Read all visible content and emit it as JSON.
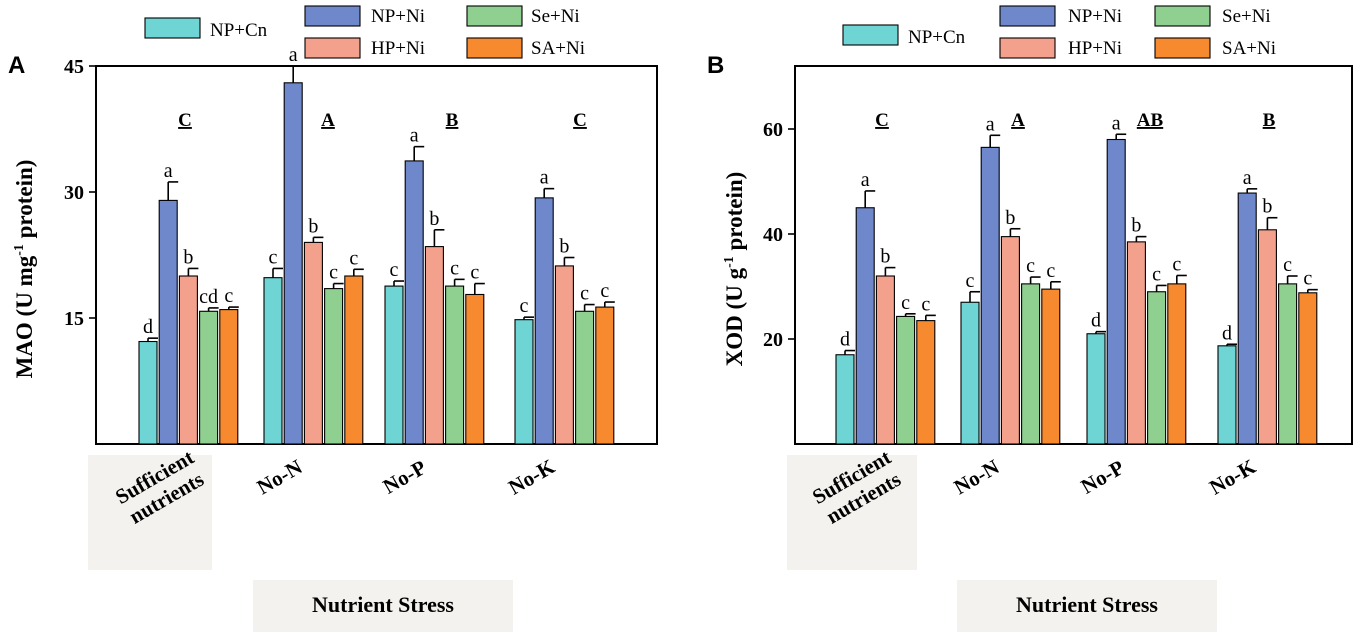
{
  "chart_data": [
    {
      "panel": "A",
      "type": "bar",
      "ylabel": "MAO (U mg",
      "ylabel_sup": "-1",
      "ylabel_tail": " protein)",
      "xlabel": "Nutrient Stress",
      "ylim": [
        0,
        45
      ],
      "yticks": [
        15,
        30,
        45
      ],
      "categories": [
        [
          "Sufficient",
          "nutrients"
        ],
        [
          "No-N"
        ],
        [
          "No-P"
        ],
        [
          "No-K"
        ]
      ],
      "group_letters": [
        "C",
        "A",
        "B",
        "C"
      ],
      "series": [
        {
          "name": "NP+Cn",
          "color": "#6fd4d4",
          "values": [
            12.2,
            19.8,
            18.8,
            14.8
          ],
          "errors": [
            0.4,
            1.1,
            0.6,
            0.3
          ],
          "letters": [
            "d",
            "c",
            "c",
            "c"
          ]
        },
        {
          "name": "NP+Ni",
          "color": "#6f88cc",
          "values": [
            29.0,
            43.0,
            33.7,
            29.3
          ],
          "errors": [
            2.2,
            2.0,
            1.7,
            1.1
          ],
          "letters": [
            "a",
            "a",
            "a",
            "a"
          ]
        },
        {
          "name": "HP+Ni",
          "color": "#f3a18c",
          "values": [
            20.0,
            24.0,
            23.5,
            21.2
          ],
          "errors": [
            0.9,
            0.6,
            2.0,
            1.0
          ],
          "letters": [
            "b",
            "b",
            "b",
            "b"
          ]
        },
        {
          "name": "Se+Ni",
          "color": "#8fcf8f",
          "values": [
            15.8,
            18.5,
            18.8,
            15.8
          ],
          "errors": [
            0.4,
            0.6,
            0.8,
            0.8
          ],
          "letters": [
            "cd",
            "c",
            "c",
            "c"
          ]
        },
        {
          "name": "SA+Ni",
          "color": "#f78a2e",
          "values": [
            16.0,
            20.0,
            17.8,
            16.3
          ],
          "errors": [
            0.3,
            0.8,
            1.3,
            0.6
          ],
          "letters": [
            "c",
            "c",
            "c",
            "c"
          ]
        }
      ]
    },
    {
      "panel": "B",
      "type": "bar",
      "ylabel": "XOD (U g",
      "ylabel_sup": "-1",
      "ylabel_tail": " protein)",
      "xlabel": "Nutrient Stress",
      "ylim": [
        0,
        72
      ],
      "yticks": [
        20,
        40,
        60
      ],
      "categories": [
        [
          "Sufficient",
          "nutrients"
        ],
        [
          "No-N"
        ],
        [
          "No-P"
        ],
        [
          "No-K"
        ]
      ],
      "group_letters": [
        "C",
        "A",
        "AB",
        "B"
      ],
      "series": [
        {
          "name": "NP+Cn",
          "color": "#6fd4d4",
          "values": [
            17.0,
            27.0,
            21.0,
            18.7
          ],
          "errors": [
            0.8,
            2.0,
            0.4,
            0.3
          ],
          "letters": [
            "d",
            "c",
            "d",
            "d"
          ]
        },
        {
          "name": "NP+Ni",
          "color": "#6f88cc",
          "values": [
            45.0,
            56.5,
            58.0,
            47.8
          ],
          "errors": [
            3.2,
            2.3,
            1.0,
            0.8
          ],
          "letters": [
            "a",
            "a",
            "a",
            "a"
          ]
        },
        {
          "name": "HP+Ni",
          "color": "#f3a18c",
          "values": [
            32.0,
            39.5,
            38.5,
            40.8
          ],
          "errors": [
            1.6,
            1.5,
            1.0,
            2.3
          ],
          "letters": [
            "b",
            "b",
            "b",
            "b"
          ]
        },
        {
          "name": "Se+Ni",
          "color": "#8fcf8f",
          "values": [
            24.3,
            30.5,
            29.0,
            30.5
          ],
          "errors": [
            0.5,
            1.3,
            1.2,
            1.5
          ],
          "letters": [
            "c",
            "c",
            "c",
            "c"
          ]
        },
        {
          "name": "SA+Ni",
          "color": "#f78a2e",
          "values": [
            23.5,
            29.5,
            30.5,
            28.8
          ],
          "errors": [
            1.0,
            1.4,
            1.6,
            0.6
          ],
          "letters": [
            "c",
            "c",
            "c",
            "c"
          ]
        }
      ]
    }
  ]
}
